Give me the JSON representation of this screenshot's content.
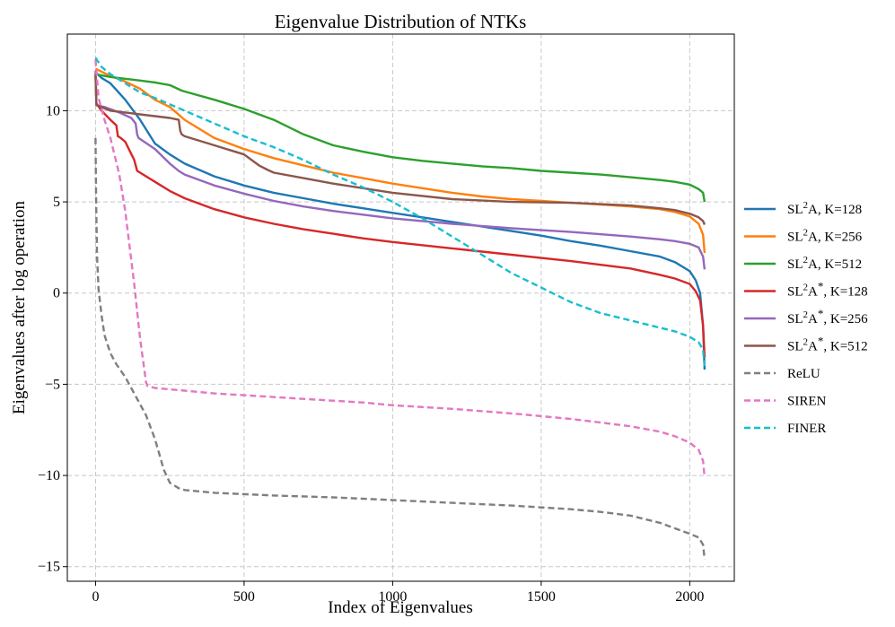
{
  "chart_data": {
    "type": "line",
    "title": "Eigenvalue Distribution of NTKs",
    "xlabel": "Index of Eigenvalues",
    "ylabel": "Eigenvalues after log operation",
    "xlim": [
      -95,
      2150
    ],
    "ylim": [
      -15.8,
      14.2
    ],
    "xticks": [
      0,
      500,
      1000,
      1500,
      2000
    ],
    "yticks": [
      -15,
      -10,
      -5,
      0,
      5,
      10
    ],
    "ytick_labels": [
      "−15",
      "−10",
      "−5",
      "0",
      "5",
      "10"
    ],
    "grid": true,
    "legend_position": "right, outside plot",
    "series": [
      {
        "name": "SL2A, K=128",
        "legend": {
          "pre": "SL",
          "sup1": "2",
          "mid": "A",
          "sup2": "",
          "post": ", K=128"
        },
        "color": "#1f77b4",
        "dash": "solid",
        "x": [
          0,
          20,
          50,
          100,
          150,
          200,
          250,
          300,
          400,
          500,
          600,
          700,
          800,
          900,
          1000,
          1100,
          1200,
          1300,
          1400,
          1500,
          1600,
          1700,
          1800,
          1900,
          1950,
          2000,
          2020,
          2035,
          2045,
          2050
        ],
        "y": [
          12.1,
          11.8,
          11.5,
          10.6,
          9.5,
          8.2,
          7.6,
          7.1,
          6.4,
          5.9,
          5.5,
          5.2,
          4.9,
          4.65,
          4.4,
          4.15,
          3.9,
          3.65,
          3.4,
          3.15,
          2.85,
          2.6,
          2.3,
          2.0,
          1.7,
          1.2,
          0.7,
          0.0,
          -1.8,
          -4.2
        ]
      },
      {
        "name": "SL2A, K=256",
        "legend": {
          "pre": "SL",
          "sup1": "2",
          "mid": "A",
          "sup2": "",
          "post": ", K=256"
        },
        "color": "#ff7f0e",
        "dash": "solid",
        "x": [
          0,
          50,
          100,
          150,
          200,
          250,
          300,
          400,
          500,
          600,
          700,
          800,
          900,
          1000,
          1100,
          1200,
          1300,
          1400,
          1500,
          1600,
          1700,
          1800,
          1900,
          1950,
          2000,
          2030,
          2045,
          2050
        ],
        "y": [
          12.3,
          11.9,
          11.6,
          11.2,
          10.6,
          10.2,
          9.5,
          8.5,
          7.9,
          7.4,
          7.0,
          6.6,
          6.3,
          6.0,
          5.75,
          5.5,
          5.3,
          5.15,
          5.05,
          4.95,
          4.85,
          4.75,
          4.6,
          4.45,
          4.2,
          3.8,
          3.2,
          2.2
        ]
      },
      {
        "name": "SL2A, K=512",
        "legend": {
          "pre": "SL",
          "sup1": "2",
          "mid": "A",
          "sup2": "",
          "post": ", K=512"
        },
        "color": "#2ca02c",
        "dash": "solid",
        "x": [
          0,
          50,
          100,
          150,
          200,
          250,
          290,
          300,
          400,
          500,
          600,
          700,
          800,
          900,
          1000,
          1100,
          1200,
          1300,
          1400,
          1500,
          1600,
          1700,
          1800,
          1900,
          1950,
          2000,
          2030,
          2045,
          2050
        ],
        "y": [
          12.0,
          11.85,
          11.75,
          11.65,
          11.55,
          11.4,
          11.1,
          11.05,
          10.6,
          10.1,
          9.5,
          8.7,
          8.1,
          7.75,
          7.45,
          7.25,
          7.1,
          6.95,
          6.85,
          6.7,
          6.6,
          6.5,
          6.35,
          6.2,
          6.1,
          5.95,
          5.7,
          5.5,
          5.0
        ]
      },
      {
        "name": "SL2A*, K=128",
        "legend": {
          "pre": "SL",
          "sup1": "2",
          "mid": "A",
          "sup2": "*",
          "post": ", K=128"
        },
        "color": "#d62728",
        "dash": "solid",
        "x": [
          0,
          3,
          20,
          50,
          70,
          75,
          85,
          100,
          130,
          140,
          150,
          200,
          250,
          300,
          400,
          500,
          600,
          700,
          800,
          900,
          1000,
          1200,
          1400,
          1600,
          1800,
          1900,
          1950,
          2000,
          2020,
          2035,
          2045,
          2050
        ],
        "y": [
          12.0,
          10.4,
          10.0,
          9.5,
          9.2,
          8.6,
          8.5,
          8.3,
          7.3,
          6.7,
          6.6,
          6.1,
          5.6,
          5.2,
          4.6,
          4.15,
          3.8,
          3.5,
          3.25,
          3.0,
          2.8,
          2.45,
          2.1,
          1.75,
          1.35,
          1.0,
          0.8,
          0.5,
          0.1,
          -0.4,
          -1.8,
          -3.5
        ]
      },
      {
        "name": "SL2A*, K=256",
        "legend": {
          "pre": "SL",
          "sup1": "2",
          "mid": "A",
          "sup2": "*",
          "post": ", K=256"
        },
        "color": "#9467bd",
        "dash": "solid",
        "x": [
          0,
          3,
          30,
          80,
          120,
          135,
          140,
          145,
          200,
          250,
          280,
          300,
          400,
          500,
          600,
          700,
          800,
          900,
          1000,
          1200,
          1400,
          1600,
          1800,
          1900,
          1950,
          2000,
          2030,
          2045,
          2050
        ],
        "y": [
          12.2,
          10.3,
          10.2,
          9.9,
          9.6,
          9.3,
          8.7,
          8.5,
          7.9,
          7.1,
          6.7,
          6.5,
          5.9,
          5.45,
          5.05,
          4.75,
          4.5,
          4.3,
          4.1,
          3.8,
          3.55,
          3.35,
          3.1,
          2.95,
          2.85,
          2.7,
          2.5,
          2.0,
          1.3
        ]
      },
      {
        "name": "SL2A*, K=512",
        "legend": {
          "pre": "SL",
          "sup1": "2",
          "mid": "A",
          "sup2": "*",
          "post": ", K=512"
        },
        "color": "#8c564b",
        "dash": "solid",
        "x": [
          0,
          3,
          50,
          100,
          150,
          200,
          250,
          280,
          285,
          290,
          300,
          400,
          500,
          550,
          580,
          600,
          700,
          800,
          900,
          1000,
          1200,
          1400,
          1600,
          1800,
          1900,
          1950,
          2000,
          2030,
          2045,
          2050
        ],
        "y": [
          12.0,
          10.3,
          10.0,
          9.9,
          9.8,
          9.7,
          9.6,
          9.5,
          8.9,
          8.7,
          8.6,
          8.1,
          7.6,
          7.0,
          6.75,
          6.6,
          6.3,
          6.0,
          5.75,
          5.5,
          5.15,
          5.0,
          4.95,
          4.8,
          4.65,
          4.55,
          4.35,
          4.15,
          3.95,
          3.75
        ]
      },
      {
        "name": "ReLU",
        "legend": {
          "pre": "ReLU",
          "sup1": "",
          "mid": "",
          "sup2": "",
          "post": ""
        },
        "color": "#7f7f7f",
        "dash": "dashed",
        "x": [
          0,
          2,
          5,
          10,
          20,
          30,
          50,
          70,
          100,
          130,
          170,
          200,
          230,
          250,
          280,
          300,
          400,
          600,
          800,
          1000,
          1200,
          1400,
          1600,
          1700,
          1800,
          1900,
          1950,
          2000,
          2030,
          2045,
          2050
        ],
        "y": [
          8.5,
          5.0,
          2.0,
          0.2,
          -1.2,
          -2.3,
          -3.3,
          -3.9,
          -4.6,
          -5.5,
          -6.7,
          -8.0,
          -9.7,
          -10.4,
          -10.7,
          -10.8,
          -10.95,
          -11.1,
          -11.2,
          -11.35,
          -11.5,
          -11.65,
          -11.85,
          -12.0,
          -12.2,
          -12.6,
          -12.9,
          -13.2,
          -13.4,
          -13.8,
          -14.6
        ]
      },
      {
        "name": "SIREN",
        "legend": {
          "pre": "SIREN",
          "sup1": "",
          "mid": "",
          "sup2": "",
          "post": ""
        },
        "color": "#e377c2",
        "dash": "dashed",
        "x": [
          0,
          10,
          30,
          50,
          80,
          100,
          130,
          150,
          170,
          175,
          200,
          300,
          400,
          500,
          700,
          900,
          1000,
          1200,
          1400,
          1600,
          1700,
          1800,
          1900,
          1950,
          2000,
          2030,
          2045,
          2050
        ],
        "y": [
          12.8,
          10.7,
          9.5,
          8.5,
          6.5,
          4.5,
          0.5,
          -2.5,
          -4.9,
          -5.1,
          -5.2,
          -5.35,
          -5.5,
          -5.6,
          -5.8,
          -6.0,
          -6.15,
          -6.35,
          -6.6,
          -6.9,
          -7.1,
          -7.3,
          -7.6,
          -7.85,
          -8.2,
          -8.6,
          -9.2,
          -10.1
        ]
      },
      {
        "name": "FINER",
        "legend": {
          "pre": "FINER",
          "sup1": "",
          "mid": "",
          "sup2": "",
          "post": ""
        },
        "color": "#17becf",
        "dash": "dashed",
        "x": [
          0,
          20,
          50,
          100,
          150,
          200,
          300,
          400,
          500,
          600,
          700,
          800,
          900,
          1000,
          1100,
          1200,
          1300,
          1400,
          1500,
          1600,
          1700,
          1800,
          1900,
          1950,
          2000,
          2030,
          2045,
          2050
        ],
        "y": [
          12.9,
          12.4,
          12.0,
          11.5,
          11.0,
          10.7,
          10.0,
          9.3,
          8.6,
          8.0,
          7.3,
          6.5,
          5.8,
          5.0,
          4.1,
          3.1,
          2.1,
          1.1,
          0.3,
          -0.5,
          -1.1,
          -1.5,
          -1.9,
          -2.1,
          -2.4,
          -2.7,
          -3.1,
          -4.0
        ]
      }
    ]
  }
}
